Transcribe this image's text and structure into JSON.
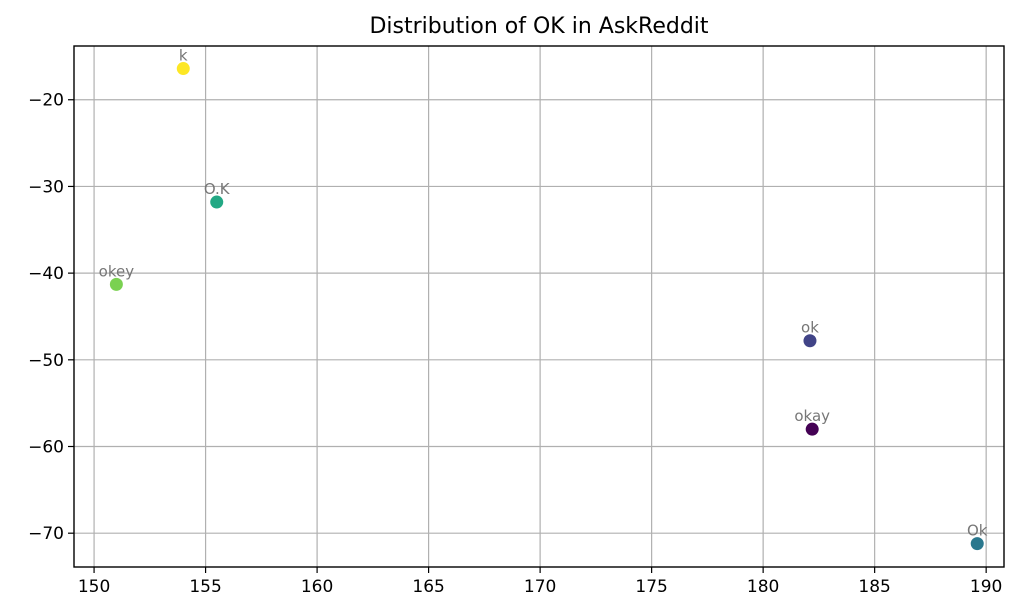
{
  "chart_data": {
    "type": "scatter",
    "title": "Distribution of OK in AskReddit",
    "xlabel": "",
    "ylabel": "",
    "xlim": [
      149.1,
      190.8
    ],
    "ylim": [
      -73.9,
      -13.8
    ],
    "xticks": [
      150,
      155,
      160,
      165,
      170,
      175,
      180,
      185,
      190
    ],
    "yticks": [
      -20,
      -30,
      -40,
      -50,
      -60,
      -70
    ],
    "grid": true,
    "points": [
      {
        "label": "k",
        "x": 154.0,
        "y": -16.4,
        "color": "#fde725"
      },
      {
        "label": "O.K",
        "x": 155.5,
        "y": -31.8,
        "color": "#22a884"
      },
      {
        "label": "okey",
        "x": 151.0,
        "y": -41.3,
        "color": "#7ad151"
      },
      {
        "label": "ok",
        "x": 182.1,
        "y": -47.8,
        "color": "#414487"
      },
      {
        "label": "okay",
        "x": 182.2,
        "y": -58.0,
        "color": "#440154"
      },
      {
        "label": "Ok",
        "x": 189.6,
        "y": -71.2,
        "color": "#2a788e"
      }
    ]
  }
}
